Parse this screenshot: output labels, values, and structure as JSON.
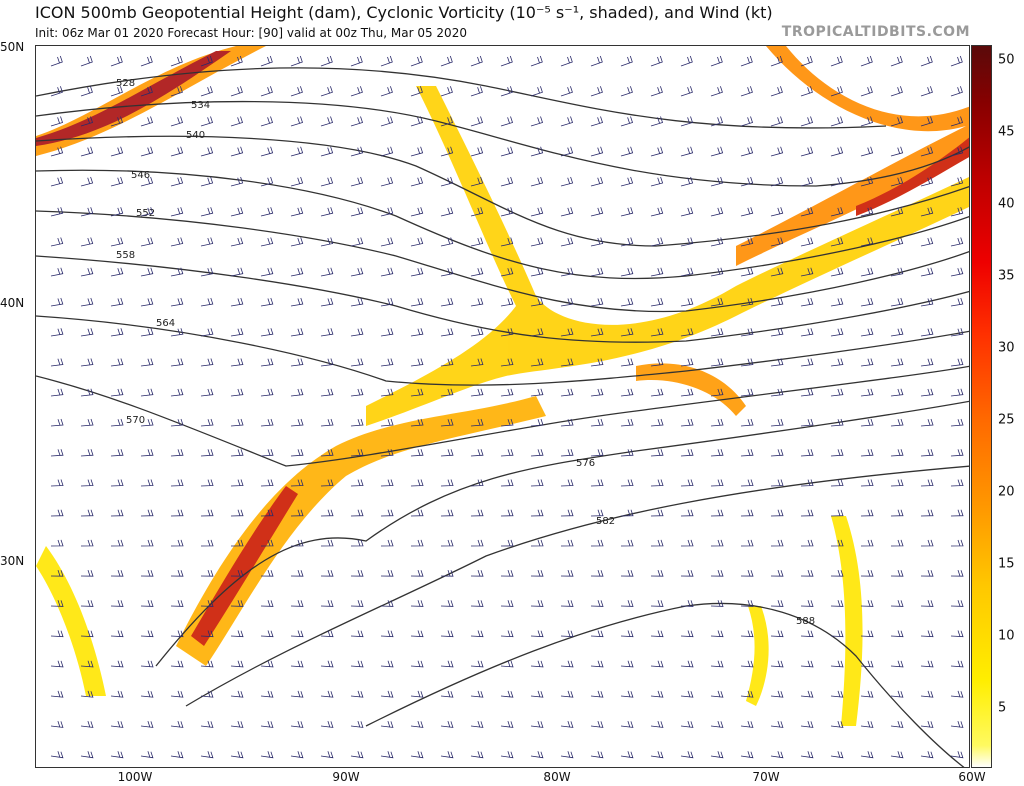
{
  "header": {
    "title": "ICON 500mb Geopotential Height (dam), Cyclonic Vorticity (10⁻⁵ s⁻¹, shaded), and Wind (kt)",
    "subtitle": "Init: 06z Mar 01 2020   Forecast Hour: [90]   valid at 00z Thu, Mar 05 2020",
    "credit": "TROPICALTIDBITS.COM"
  },
  "map": {
    "lat_labels": [
      "50N",
      "40N",
      "30N"
    ],
    "lon_labels": [
      "100W",
      "90W",
      "80W",
      "70W",
      "60W"
    ],
    "height_contour_labels": [
      "528",
      "534",
      "540",
      "546",
      "552",
      "558",
      "564",
      "570",
      "576",
      "582",
      "588"
    ],
    "contour_color": "#333333",
    "wind_barb_color": "#2a2a6a",
    "boundary_color": "#000000"
  },
  "colorbar": {
    "ticks": [
      "50",
      "45",
      "40",
      "35",
      "30",
      "25",
      "20",
      "15",
      "10",
      "5"
    ],
    "range": [
      1,
      51
    ],
    "colors": [
      "#fffa60",
      "#ffee00",
      "#ffc800",
      "#ff9800",
      "#ff6a00",
      "#ff3000",
      "#ee0000",
      "#bb0000",
      "#880000",
      "#5a0a0a"
    ]
  }
}
